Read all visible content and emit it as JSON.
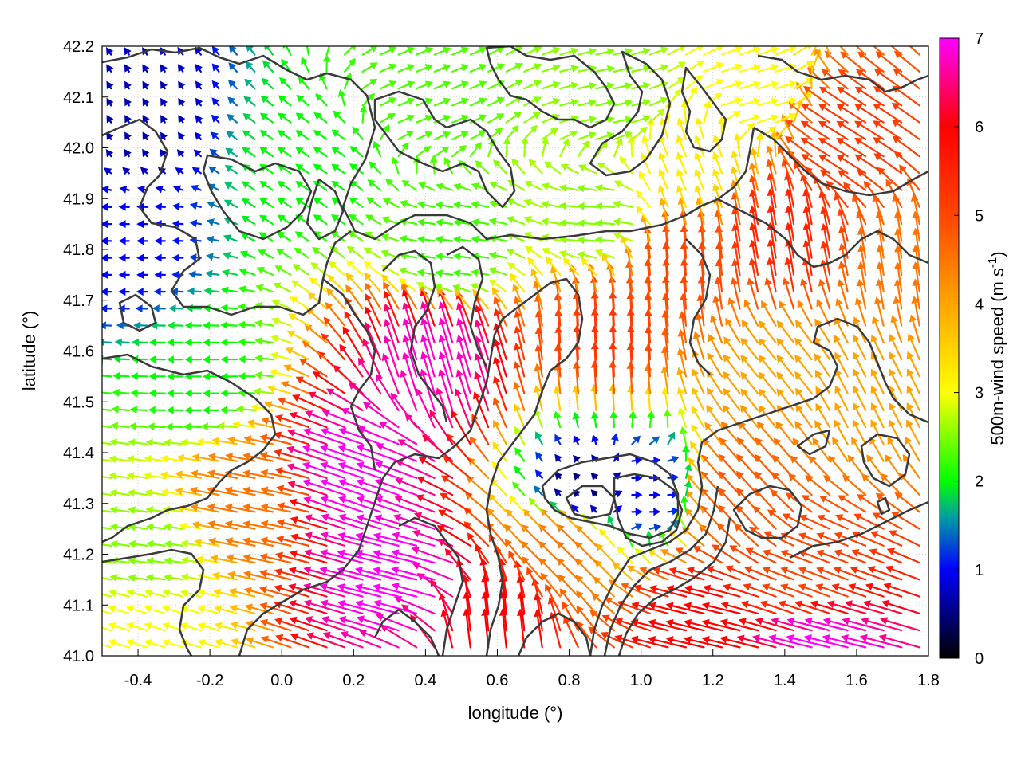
{
  "chart_data": {
    "type": "vector-field",
    "xlabel": "longitude (°)",
    "ylabel": "latitude (°)",
    "xlim": [
      -0.5,
      1.8
    ],
    "ylim": [
      41.0,
      42.2
    ],
    "x_ticks": [
      {
        "value": -0.4,
        "label": "-0.4"
      },
      {
        "value": -0.2,
        "label": "-0.2"
      },
      {
        "value": 0.0,
        "label": "0.0"
      },
      {
        "value": 0.2,
        "label": "0.2"
      },
      {
        "value": 0.4,
        "label": "0.4"
      },
      {
        "value": 0.6,
        "label": "0.6"
      },
      {
        "value": 0.8,
        "label": "0.8"
      },
      {
        "value": 1.0,
        "label": "1.0"
      },
      {
        "value": 1.2,
        "label": "1.2"
      },
      {
        "value": 1.4,
        "label": "1.4"
      },
      {
        "value": 1.6,
        "label": "1.6"
      },
      {
        "value": 1.8,
        "label": "1.8"
      }
    ],
    "y_ticks": [
      {
        "value": 41.0,
        "label": "41.0"
      },
      {
        "value": 41.1,
        "label": "41.1"
      },
      {
        "value": 41.2,
        "label": "41.2"
      },
      {
        "value": 41.3,
        "label": "41.3"
      },
      {
        "value": 41.4,
        "label": "41.4"
      },
      {
        "value": 41.5,
        "label": "41.5"
      },
      {
        "value": 41.6,
        "label": "41.6"
      },
      {
        "value": 41.7,
        "label": "41.7"
      },
      {
        "value": 41.8,
        "label": "41.8"
      },
      {
        "value": 41.9,
        "label": "41.9"
      },
      {
        "value": 42.0,
        "label": "42.0"
      },
      {
        "value": 42.1,
        "label": "42.1"
      },
      {
        "value": 42.2,
        "label": "42.2"
      }
    ],
    "grid": true,
    "colorbar": {
      "label_main": "500m-wind speed (m s",
      "label_sup": "-1",
      "label_end": ")",
      "range": [
        0,
        7
      ],
      "ticks": [
        {
          "value": 0,
          "label": "0"
        },
        {
          "value": 1,
          "label": "1"
        },
        {
          "value": 2,
          "label": "2"
        },
        {
          "value": 3,
          "label": "3"
        },
        {
          "value": 4,
          "label": "4"
        },
        {
          "value": 5,
          "label": "5"
        },
        {
          "value": 6,
          "label": "6"
        },
        {
          "value": 7,
          "label": "7"
        }
      ],
      "colors": [
        {
          "value": 0,
          "color": "#000000"
        },
        {
          "value": 1,
          "color": "#0000ff"
        },
        {
          "value": 1.6,
          "color": "#00a0a0"
        },
        {
          "value": 2,
          "color": "#00ff00"
        },
        {
          "value": 3,
          "color": "#ffff00"
        },
        {
          "value": 4,
          "color": "#ffa500"
        },
        {
          "value": 5,
          "color": "#ff4500"
        },
        {
          "value": 6,
          "color": "#ff0000"
        },
        {
          "value": 7,
          "color": "#ff00ff"
        }
      ]
    },
    "wind_regions": [
      {
        "lon": -0.42,
        "lat": 41.8,
        "u": -1.2,
        "v": 0.0,
        "speed": 1.0
      },
      {
        "lon": -0.4,
        "lat": 42.05,
        "u": -0.3,
        "v": 0.5,
        "speed": 0.7
      },
      {
        "lon": -0.2,
        "lat": 41.55,
        "u": -1.8,
        "v": 0.0,
        "speed": 2.0
      },
      {
        "lon": 0.1,
        "lat": 41.95,
        "u": -1.3,
        "v": 0.9,
        "speed": 2.0
      },
      {
        "lon": 0.4,
        "lat": 42.1,
        "u": 1.5,
        "v": 0.6,
        "speed": 2.3
      },
      {
        "lon": 0.9,
        "lat": 42.1,
        "u": 1.8,
        "v": 0.4,
        "speed": 2.5
      },
      {
        "lon": 0.5,
        "lat": 41.8,
        "u": -1.5,
        "v": 0.2,
        "speed": 2.2
      },
      {
        "lon": 0.9,
        "lat": 41.85,
        "u": -1.5,
        "v": 0.1,
        "speed": 2.5
      },
      {
        "lon": 1.3,
        "lat": 42.1,
        "u": 1.8,
        "v": 0.5,
        "speed": 3.0
      },
      {
        "lon": 1.6,
        "lat": 42.0,
        "u": -3.5,
        "v": 2.2,
        "speed": 5.2
      },
      {
        "lon": 1.4,
        "lat": 41.8,
        "u": -0.8,
        "v": 4.8,
        "speed": 5.5
      },
      {
        "lon": 0.9,
        "lat": 41.6,
        "u": -0.2,
        "v": 4.5,
        "speed": 5.2
      },
      {
        "lon": 0.45,
        "lat": 41.55,
        "u": -1.5,
        "v": 5.2,
        "speed": 6.8
      },
      {
        "lon": 0.25,
        "lat": 41.35,
        "u": -5.8,
        "v": 2.0,
        "speed": 7.0
      },
      {
        "lon": 0.35,
        "lat": 41.15,
        "u": -6.0,
        "v": 1.5,
        "speed": 7.0
      },
      {
        "lon": -0.05,
        "lat": 41.3,
        "u": -4.0,
        "v": 0.8,
        "speed": 4.5
      },
      {
        "lon": -0.35,
        "lat": 41.2,
        "u": -2.2,
        "v": 0.3,
        "speed": 2.5
      },
      {
        "lon": -0.35,
        "lat": 41.05,
        "u": -2.5,
        "v": 0.8,
        "speed": 3.0
      },
      {
        "lon": 0.6,
        "lat": 41.05,
        "u": -0.5,
        "v": 5.0,
        "speed": 6.0
      },
      {
        "lon": 0.8,
        "lat": 41.2,
        "u": -2.5,
        "v": 2.5,
        "speed": 4.5
      },
      {
        "lon": 1.0,
        "lat": 41.32,
        "u": 1.0,
        "v": 0.0,
        "speed": 1.0
      },
      {
        "lon": 0.85,
        "lat": 41.33,
        "u": -0.3,
        "v": 0.3,
        "speed": 0.5
      },
      {
        "lon": 1.3,
        "lat": 41.3,
        "u": -2.5,
        "v": 2.8,
        "speed": 4.8
      },
      {
        "lon": 1.5,
        "lat": 41.15,
        "u": -4.0,
        "v": 1.5,
        "speed": 5.0
      },
      {
        "lon": 1.55,
        "lat": 41.0,
        "u": -6.0,
        "v": 1.5,
        "speed": 7.0
      },
      {
        "lon": 1.2,
        "lat": 41.05,
        "u": -5.0,
        "v": 1.2,
        "speed": 6.0
      },
      {
        "lon": 1.4,
        "lat": 41.55,
        "u": -2.0,
        "v": 2.5,
        "speed": 4.0
      },
      {
        "lon": 1.65,
        "lat": 41.5,
        "u": -1.5,
        "v": 3.0,
        "speed": 4.0
      },
      {
        "lon": 1.75,
        "lat": 41.75,
        "u": -0.5,
        "v": 3.5,
        "speed": 4.5
      },
      {
        "lon": 1.1,
        "lat": 41.75,
        "u": -0.3,
        "v": 4.5,
        "speed": 5.0
      },
      {
        "lon": 1.15,
        "lat": 41.95,
        "u": -1.0,
        "v": 2.5,
        "speed": 3.2
      }
    ]
  }
}
